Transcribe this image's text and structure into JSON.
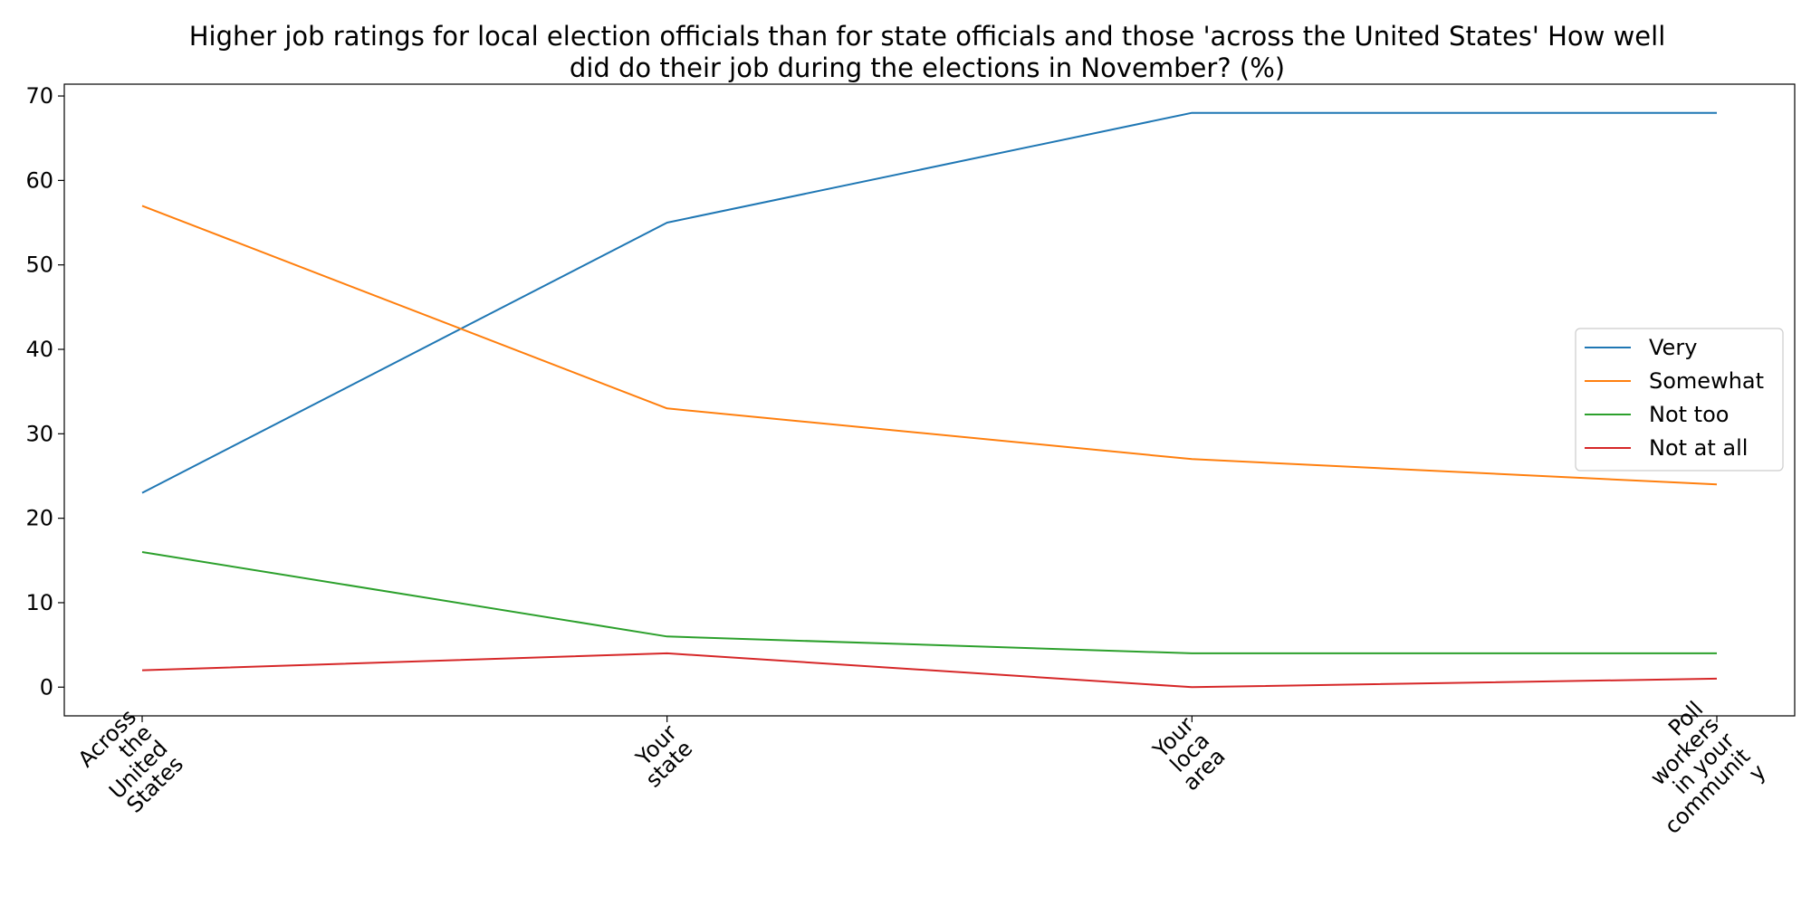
{
  "chart_data": {
    "type": "line",
    "title": "Higher job ratings for local election officials than for state officials and those 'across the United States' How well did do their job during the elections in November? (%)",
    "title_lines": [
      "Higher job ratings for local election officials than for state officials and those 'across the United States' How well",
      "did do their job during the elections in November? (%)"
    ],
    "categories": [
      "Across the United States",
      "Your state",
      "Your loca area",
      "Poll workers in your communit y"
    ],
    "category_label_lines": [
      [
        "Across",
        "the",
        "United",
        "States"
      ],
      [
        "Your",
        "state"
      ],
      [
        "Your",
        "loca",
        "area"
      ],
      [
        "Poll",
        "workers",
        "in your",
        "communit",
        "y"
      ]
    ],
    "series": [
      {
        "name": "Very",
        "color": "#1f77b4",
        "values": [
          23,
          55,
          68,
          68
        ]
      },
      {
        "name": "Somewhat",
        "color": "#ff7f0e",
        "values": [
          57,
          33,
          27,
          24
        ]
      },
      {
        "name": "Not too",
        "color": "#2ca02c",
        "values": [
          16,
          6,
          4,
          4
        ]
      },
      {
        "name": "Not at all",
        "color": "#d62728",
        "values": [
          2,
          4,
          0,
          1
        ]
      }
    ],
    "xlabel": "",
    "ylabel": "",
    "ylim": [
      -3.4,
      71.4
    ],
    "yticks": [
      0,
      10,
      20,
      30,
      40,
      50,
      60,
      70
    ],
    "grid": false,
    "legend_position": "center-right"
  }
}
